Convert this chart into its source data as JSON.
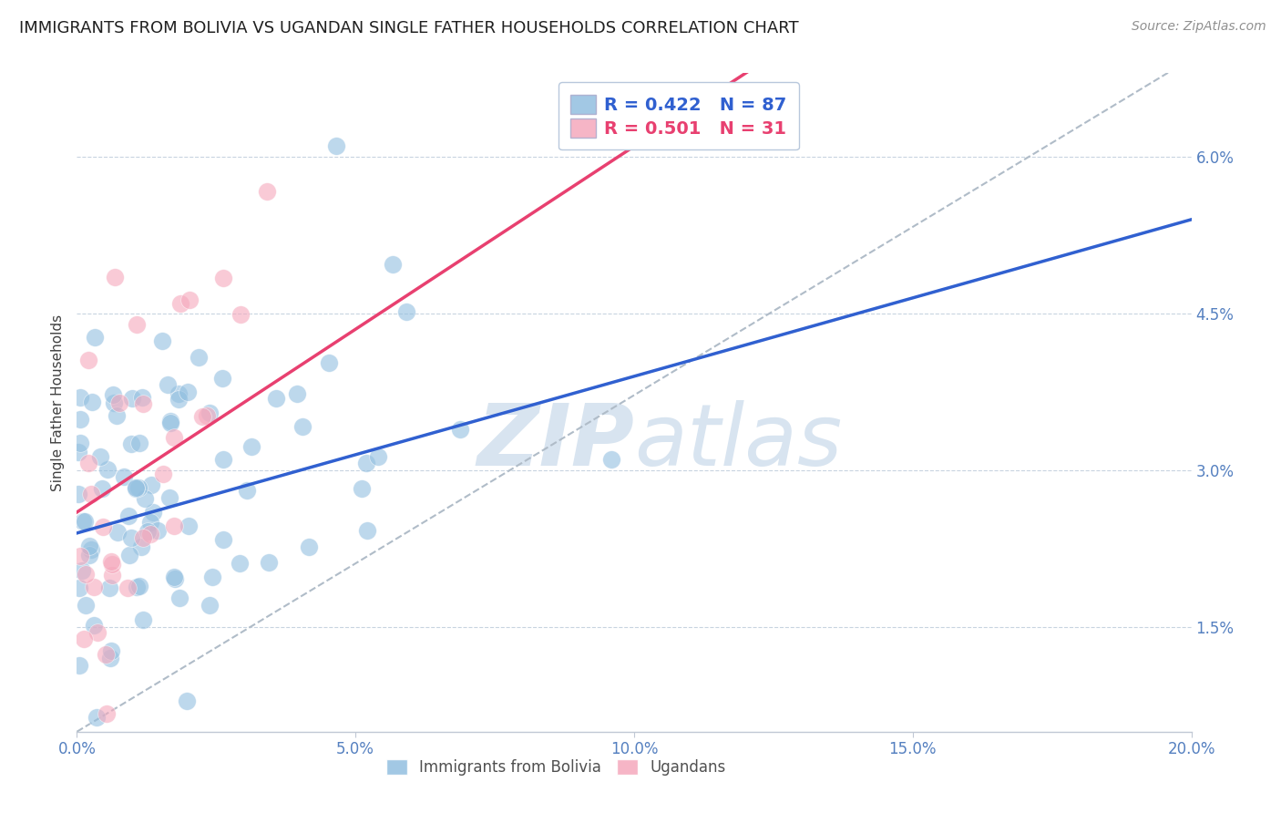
{
  "title": "IMMIGRANTS FROM BOLIVIA VS UGANDAN SINGLE FATHER HOUSEHOLDS CORRELATION CHART",
  "source": "Source: ZipAtlas.com",
  "ylabel": "Single Father Households",
  "legend_label_bolivia": "Immigrants from Bolivia",
  "legend_label_ugandan": "Ugandans",
  "bolivia_color": "#92bfe0",
  "ugandan_color": "#f5a8bc",
  "bolivia_line_color": "#3060d0",
  "ugandan_line_color": "#e84070",
  "dashed_line_color": "#b0bcc8",
  "watermark_color": "#d8e4f0",
  "title_fontsize": 13,
  "axis_label_fontsize": 11,
  "tick_fontsize": 12,
  "source_fontsize": 10,
  "legend_fontsize": 14,
  "R_bolivia": 0.422,
  "N_bolivia": 87,
  "R_ugandan": 0.501,
  "N_ugandan": 31,
  "xmin": 0.0,
  "xmax": 0.2,
  "ymin": 0.005,
  "ymax": 0.068,
  "ytick_vals": [
    0.015,
    0.03,
    0.045,
    0.06
  ],
  "ytick_labels": [
    "1.5%",
    "3.0%",
    "4.5%",
    "6.0%"
  ],
  "xtick_vals": [
    0.0,
    0.05,
    0.1,
    0.15,
    0.2
  ],
  "xtick_labels": [
    "0.0%",
    "5.0%",
    "10.0%",
    "15.0%",
    "20.0%"
  ],
  "tick_color": "#5580c0",
  "grid_color": "#c8d4e0",
  "spine_color": "#c0c8d4"
}
